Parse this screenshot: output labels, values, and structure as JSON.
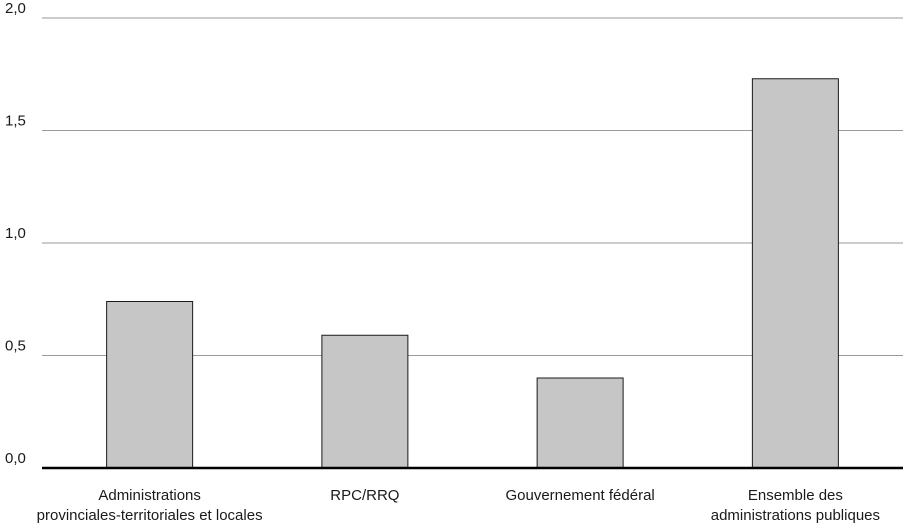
{
  "chart_data": {
    "type": "bar",
    "title": "",
    "xlabel": "",
    "ylabel": "",
    "categories": [
      [
        "Administrations",
        "provinciales-territoriales et locales"
      ],
      [
        "RPC/RRQ"
      ],
      [
        "Gouvernement fédéral"
      ],
      [
        "Ensemble des",
        "administrations publiques"
      ]
    ],
    "values": [
      0.74,
      0.59,
      0.4,
      1.73
    ],
    "ylim": [
      0,
      2.0
    ],
    "yticks": [
      "0,0",
      "0,5",
      "1,0",
      "1,5",
      "2,0"
    ],
    "grid": true,
    "legend": "none"
  },
  "colors": {
    "bar_fill": "#c6c6c6",
    "bar_stroke": "#1a1a1a",
    "grid": "#9a9a9a",
    "axis": "#000000"
  }
}
